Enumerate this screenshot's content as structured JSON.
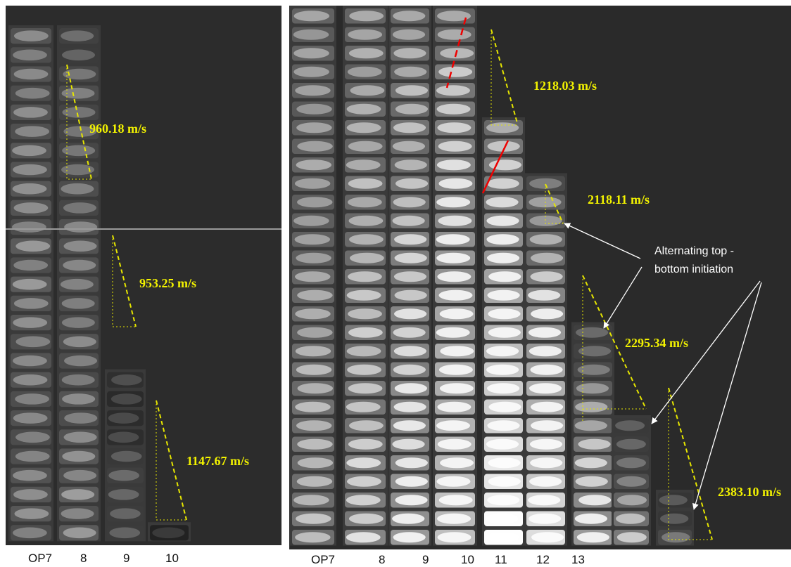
{
  "left_panel": {
    "velocities": [
      "960.18 m/s",
      "953.25 m/s",
      "1147.67 m/s"
    ],
    "columns": [
      "OP7",
      "8",
      "9",
      "10"
    ]
  },
  "right_panel": {
    "velocities": [
      "1218.03 m/s",
      "2118.11 m/s",
      "2295.34 m/s",
      "2383.10 m/s"
    ],
    "annotation": [
      "Alternating top -",
      "bottom initiation"
    ],
    "columns": [
      "OP7",
      "8",
      "9",
      "10",
      "11",
      "12",
      "13"
    ]
  }
}
